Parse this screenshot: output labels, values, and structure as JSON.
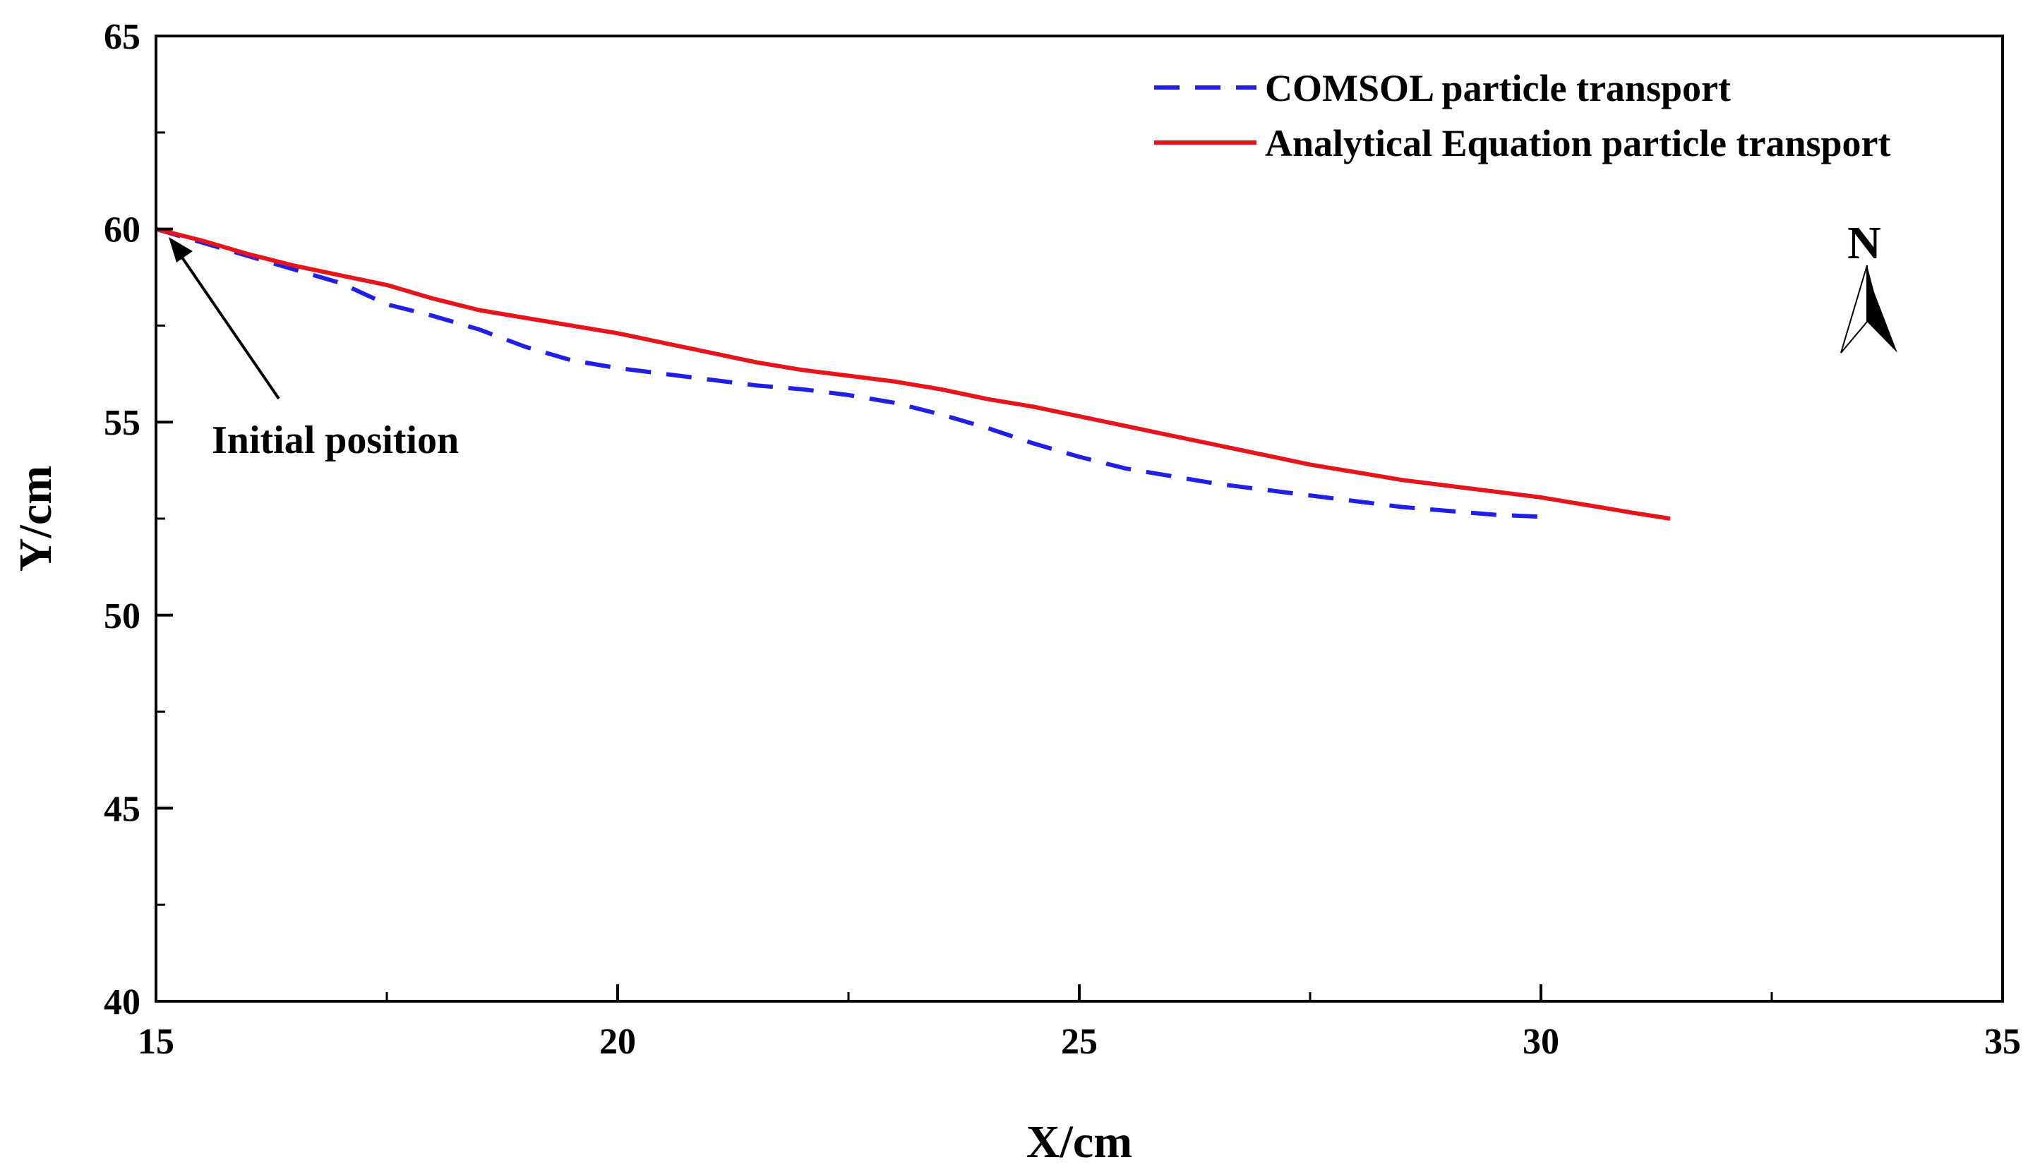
{
  "chart_data": {
    "type": "line",
    "title": "",
    "xlabel": "X/cm",
    "ylabel": "Y/cm",
    "xlim": [
      15,
      35
    ],
    "ylim": [
      40,
      65
    ],
    "xticks": [
      15,
      20,
      25,
      30,
      35
    ],
    "yticks": [
      40,
      45,
      50,
      55,
      60,
      65
    ],
    "x_minor_step": 2.5,
    "y_minor_step": 2.5,
    "grid": false,
    "legend_position": "top-right",
    "series": [
      {
        "name": "COMSOL particle transport",
        "color": "#1f1fe6",
        "style": "dashed",
        "x": [
          15.0,
          16.0,
          17.0,
          17.5,
          18.0,
          18.5,
          19.0,
          19.5,
          20.0,
          20.5,
          21.0,
          21.5,
          22.0,
          22.5,
          23.0,
          23.5,
          24.0,
          24.5,
          25.0,
          25.5,
          26.0,
          26.5,
          27.0,
          27.5,
          28.0,
          28.5,
          29.0,
          29.5,
          30.0
        ],
        "y": [
          60.0,
          59.3,
          58.6,
          58.05,
          57.75,
          57.4,
          56.95,
          56.6,
          56.4,
          56.25,
          56.1,
          55.95,
          55.85,
          55.7,
          55.5,
          55.2,
          54.85,
          54.45,
          54.1,
          53.8,
          53.6,
          53.4,
          53.25,
          53.1,
          52.95,
          52.8,
          52.7,
          52.6,
          52.55
        ]
      },
      {
        "name": "Analytical Equation particle transport",
        "color": "#e8141c",
        "style": "solid",
        "x": [
          15.0,
          15.5,
          16.0,
          16.5,
          17.0,
          17.5,
          18.0,
          18.5,
          19.0,
          19.5,
          20.0,
          20.5,
          21.0,
          21.5,
          22.0,
          22.5,
          23.0,
          23.5,
          24.0,
          24.5,
          25.0,
          25.5,
          26.0,
          26.5,
          27.0,
          27.5,
          28.0,
          28.5,
          29.0,
          29.5,
          30.0,
          30.5,
          31.0,
          31.4
        ],
        "y": [
          60.0,
          59.7,
          59.35,
          59.05,
          58.8,
          58.55,
          58.2,
          57.9,
          57.7,
          57.5,
          57.3,
          57.05,
          56.8,
          56.55,
          56.35,
          56.2,
          56.05,
          55.85,
          55.6,
          55.4,
          55.15,
          54.9,
          54.65,
          54.4,
          54.15,
          53.9,
          53.7,
          53.5,
          53.35,
          53.2,
          53.05,
          52.85,
          52.65,
          52.5
        ]
      }
    ],
    "annotations": [
      {
        "text": "Initial position",
        "points_to": [
          15.15,
          59.85
        ]
      }
    ],
    "north_arrow_label": "N"
  }
}
